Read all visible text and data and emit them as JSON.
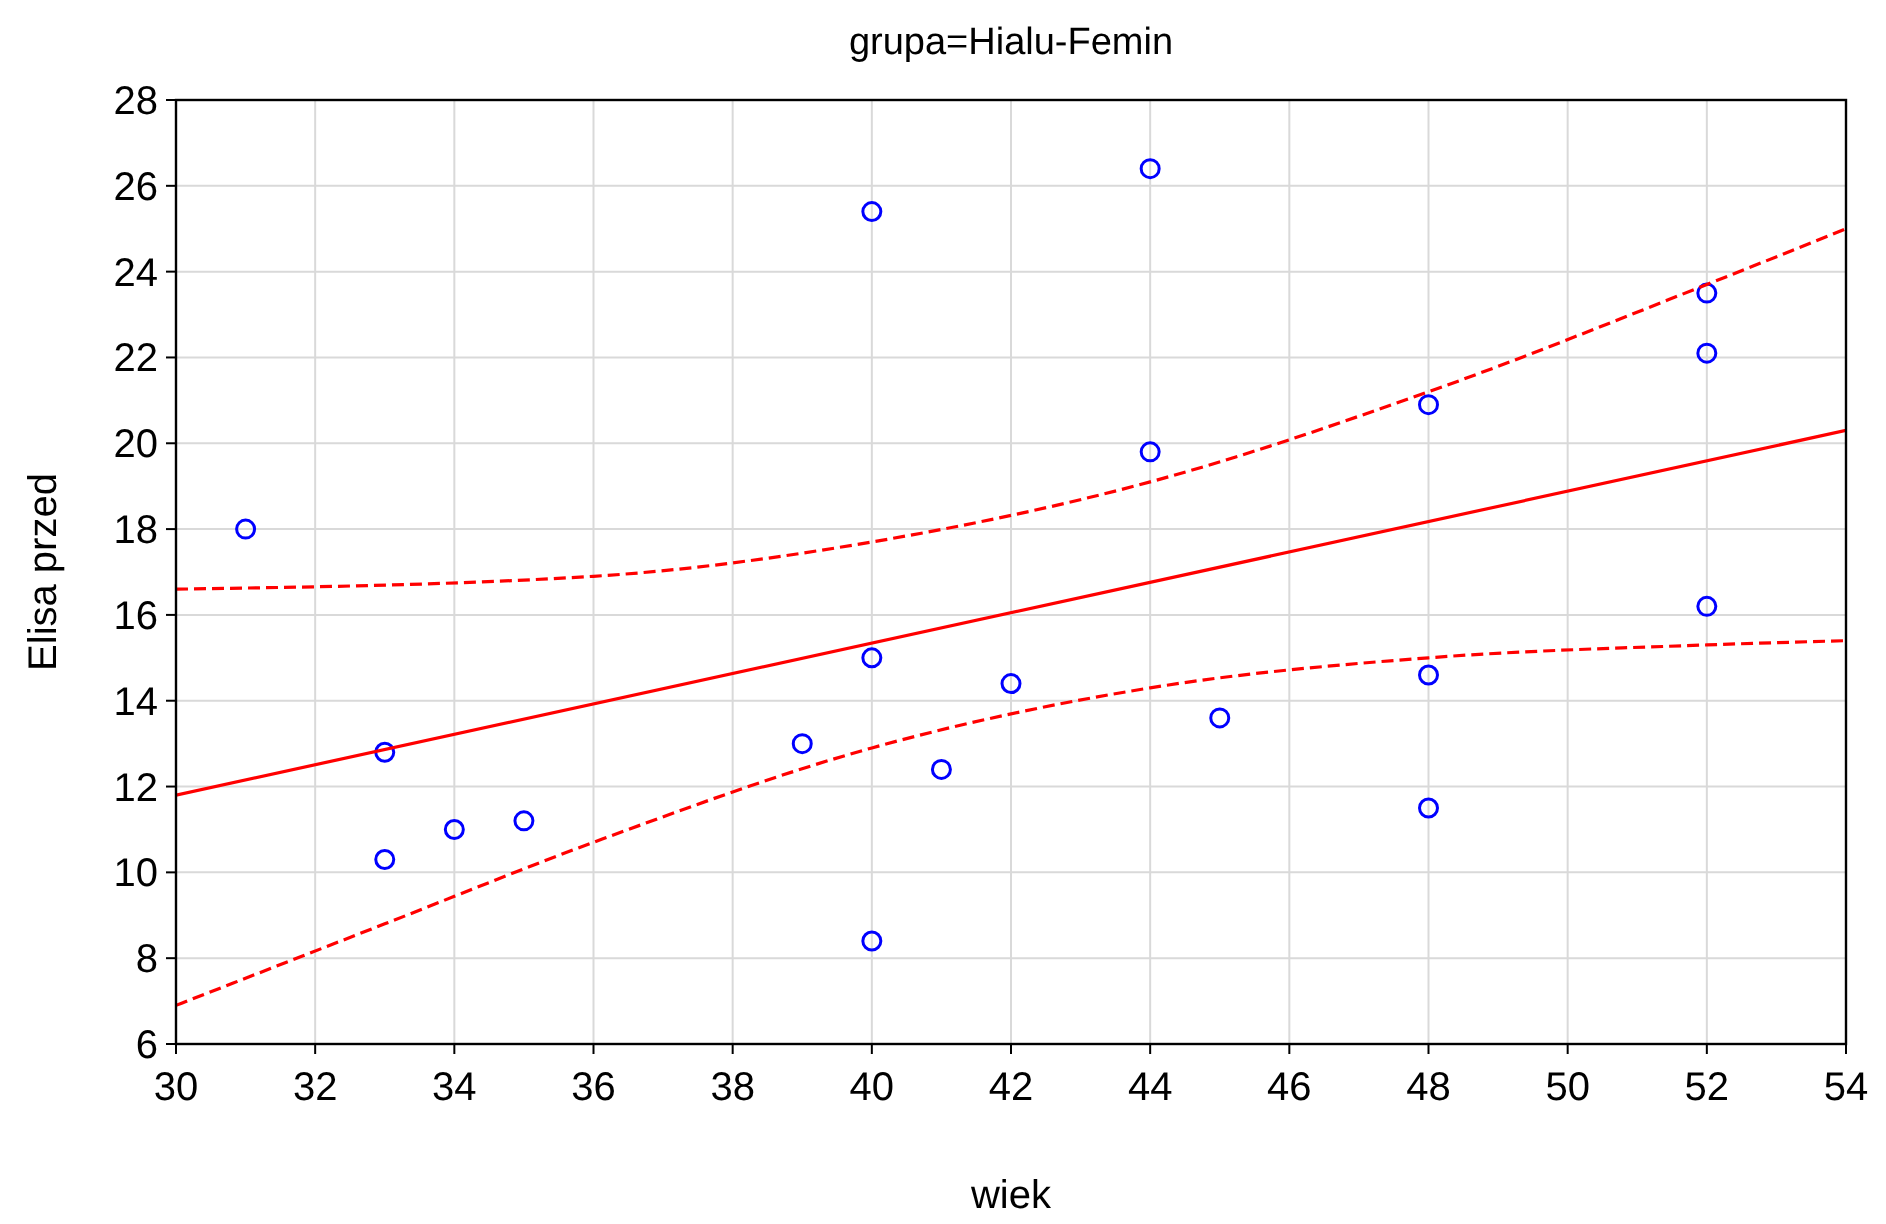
{
  "chart_data": {
    "type": "scatter",
    "title": "grupa=Hialu-Femin",
    "xlabel": "wiek",
    "ylabel": "Elisa przed",
    "xlim": [
      30,
      54
    ],
    "xticks": [
      30,
      32,
      34,
      36,
      38,
      40,
      42,
      44,
      46,
      48,
      50,
      52,
      54
    ],
    "ylim": [
      6,
      28
    ],
    "yticks": [
      6,
      8,
      10,
      12,
      14,
      16,
      18,
      20,
      22,
      24,
      26,
      28
    ],
    "grid": true,
    "series": [
      {
        "color": "#0000ff",
        "marker": "circle",
        "x": [
          31,
          33,
          33,
          34,
          35,
          39,
          40,
          40,
          40,
          41,
          42,
          44,
          44,
          45,
          48,
          48,
          48,
          52,
          52,
          52
        ],
        "values": [
          18.0,
          12.8,
          10.3,
          11.0,
          11.2,
          13.0,
          25.4,
          15.0,
          8.4,
          12.4,
          14.4,
          26.4,
          19.8,
          13.6,
          20.9,
          14.6,
          11.5,
          23.5,
          22.1,
          16.2
        ]
      },
      {
        "type": "line",
        "color": "#ff0000",
        "line_style": "solid",
        "x": [
          30,
          54
        ],
        "values": [
          11.8,
          20.3
        ]
      },
      {
        "type": "line",
        "color": "#ff0000",
        "line_style": "dashed",
        "x": [
          30,
          33,
          36,
          40,
          44,
          48,
          52,
          54
        ],
        "values": [
          6.9,
          8.8,
          10.7,
          12.9,
          14.3,
          15.0,
          15.3,
          15.4
        ]
      },
      {
        "type": "line",
        "color": "#ff0000",
        "line_style": "dashed",
        "x": [
          30,
          36,
          40,
          44,
          48,
          52,
          54
        ],
        "values": [
          16.6,
          16.9,
          17.7,
          19.1,
          21.2,
          23.7,
          25.0
        ]
      }
    ]
  }
}
